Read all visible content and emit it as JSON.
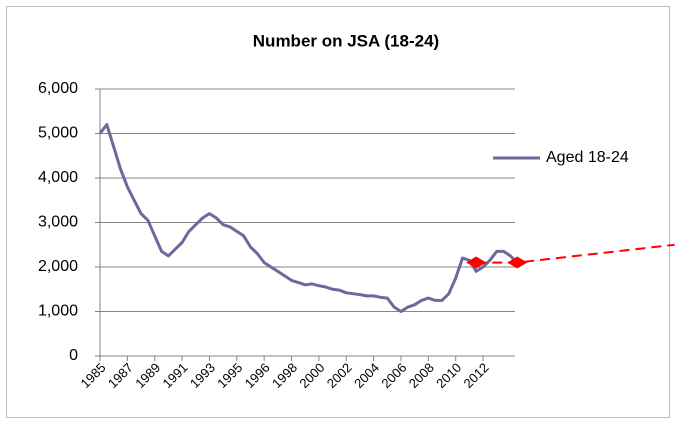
{
  "chart_data": {
    "type": "line",
    "title": "Number on JSA (18-24)",
    "categories": [
      "1985",
      null,
      null,
      null,
      "1987",
      null,
      null,
      null,
      "1989",
      null,
      null,
      null,
      "1991",
      null,
      null,
      null,
      "1993",
      null,
      null,
      null,
      "1995",
      null,
      null,
      null,
      "1996",
      null,
      null,
      null,
      "1998",
      null,
      null,
      null,
      "2000",
      null,
      null,
      null,
      "2002",
      null,
      null,
      null,
      "2004",
      null,
      null,
      null,
      "2006",
      null,
      null,
      null,
      "2008",
      null,
      null,
      null,
      "2010",
      null,
      null,
      null,
      "2012",
      null,
      null,
      null,
      null,
      null
    ],
    "series": [
      {
        "name": "Aged 18-24",
        "color": "#6a6a9c",
        "values": [
          5000,
          5200,
          4700,
          4200,
          3800,
          3500,
          3200,
          3050,
          2700,
          2350,
          2250,
          2400,
          2550,
          2800,
          2950,
          3100,
          3200,
          3100,
          2950,
          2900,
          2800,
          2700,
          2450,
          2300,
          2100,
          2000,
          1900,
          1800,
          1700,
          1650,
          1600,
          1620,
          1580,
          1550,
          1500,
          1480,
          1420,
          1400,
          1380,
          1350,
          1350,
          1320,
          1300,
          1100,
          1000,
          1100,
          1150,
          1250,
          1300,
          1250,
          1250,
          1400,
          1750,
          2200,
          2150,
          1900,
          2000,
          2150,
          2350,
          2350,
          2250,
          2100
        ]
      },
      {
        "color": "#ff0000",
        "dashed": true,
        "marker": "diamond",
        "x": [
          55,
          61,
          84
        ],
        "values": [
          2100,
          2100,
          2500
        ]
      }
    ],
    "ylim": [
      0,
      6000
    ],
    "yticks": [
      {
        "value": 0,
        "label": "0"
      },
      {
        "value": 1000,
        "label": "1,000"
      },
      {
        "value": 2000,
        "label": "2,000"
      },
      {
        "value": 3000,
        "label": "3,000"
      },
      {
        "value": 4000,
        "label": "4,000"
      },
      {
        "value": 5000,
        "label": "5,000"
      },
      {
        "value": 6000,
        "label": "6,000"
      }
    ],
    "grid": true,
    "legend": "right"
  }
}
